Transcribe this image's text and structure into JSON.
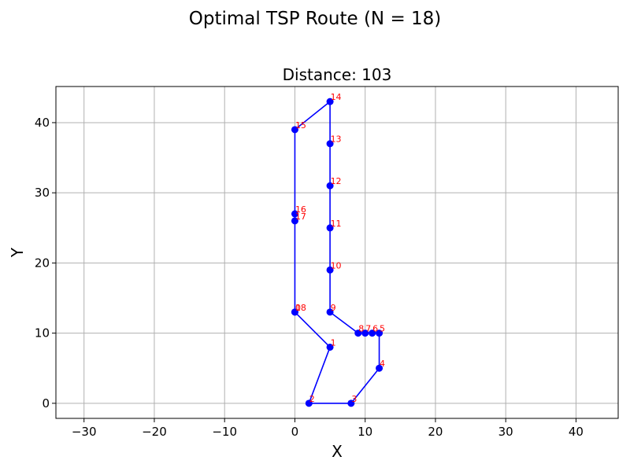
{
  "figure": {
    "suptitle": "Optimal TSP Route (N = 18)"
  },
  "chart_data": {
    "type": "line",
    "title": "Distance: 103",
    "xlabel": "X",
    "ylabel": "Y",
    "xlim": [
      -34,
      46
    ],
    "ylim": [
      -2.15,
      45.15
    ],
    "xticks": [
      -30,
      -20,
      -10,
      0,
      10,
      20,
      30,
      40
    ],
    "yticks": [
      0,
      10,
      20,
      30,
      40
    ],
    "xtick_labels": [
      "−30",
      "−20",
      "−10",
      "0",
      "10",
      "20",
      "30",
      "40"
    ],
    "ytick_labels": [
      "0",
      "10",
      "20",
      "30",
      "40"
    ],
    "grid": true,
    "route_color": "#0000ff",
    "label_color": "#ff0000",
    "points": [
      {
        "label": "0",
        "x": 0,
        "y": 13
      },
      {
        "label": "1",
        "x": 5,
        "y": 8
      },
      {
        "label": "2",
        "x": 2,
        "y": 0
      },
      {
        "label": "3",
        "x": 8,
        "y": 0
      },
      {
        "label": "4",
        "x": 12,
        "y": 5
      },
      {
        "label": "5",
        "x": 12,
        "y": 10
      },
      {
        "label": "6",
        "x": 11,
        "y": 10
      },
      {
        "label": "7",
        "x": 10,
        "y": 10
      },
      {
        "label": "8",
        "x": 9,
        "y": 10
      },
      {
        "label": "9",
        "x": 5,
        "y": 13
      },
      {
        "label": "10",
        "x": 5,
        "y": 19
      },
      {
        "label": "11",
        "x": 5,
        "y": 25
      },
      {
        "label": "12",
        "x": 5,
        "y": 31
      },
      {
        "label": "13",
        "x": 5,
        "y": 37
      },
      {
        "label": "14",
        "x": 5,
        "y": 43
      },
      {
        "label": "15",
        "x": 0,
        "y": 39
      },
      {
        "label": "16",
        "x": 0,
        "y": 27
      },
      {
        "label": "17",
        "x": 0,
        "y": 26
      },
      {
        "label": "18",
        "x": 0,
        "y": 13
      }
    ]
  }
}
